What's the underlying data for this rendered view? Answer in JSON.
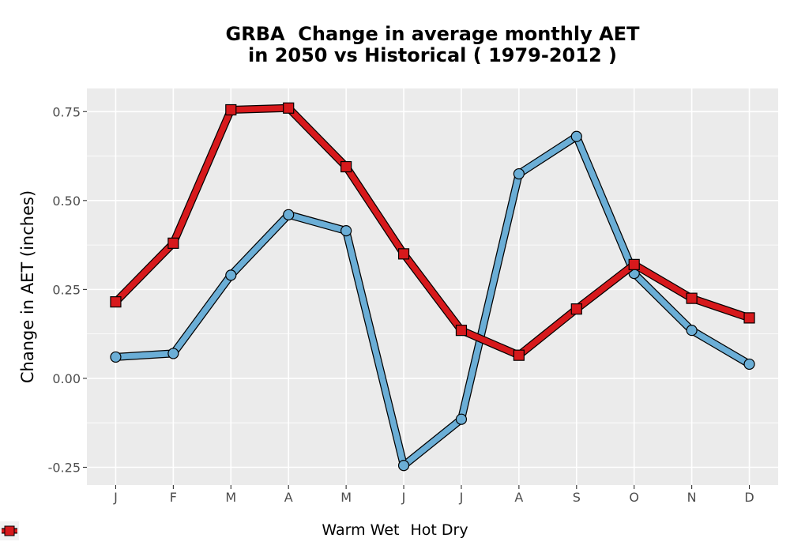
{
  "chart_data": {
    "type": "line",
    "title_lines": [
      "GRBA  Change in average monthly AET",
      "in 2050 vs Historical ( 1979-2012 )"
    ],
    "xlabel": "",
    "ylabel": "Change in AET (inches)",
    "categories": [
      "J",
      "F",
      "M",
      "A",
      "M",
      "J",
      "J",
      "A",
      "S",
      "O",
      "N",
      "D"
    ],
    "y_ticks": [
      -0.25,
      0.0,
      0.25,
      0.5,
      0.75
    ],
    "y_tick_labels": [
      "-0.25",
      "0.00",
      "0.25",
      "0.50",
      "0.75"
    ],
    "ylim": [
      -0.3,
      0.815
    ],
    "grid": true,
    "legend_position": "bottom",
    "series": [
      {
        "name": "Warm Wet",
        "marker": "circle",
        "color": "#6baed6",
        "values": [
          0.06,
          0.07,
          0.29,
          0.46,
          0.415,
          -0.245,
          -0.115,
          0.575,
          0.68,
          0.295,
          0.135,
          0.04
        ]
      },
      {
        "name": "Hot Dry",
        "marker": "square",
        "color": "#d7191c",
        "values": [
          0.215,
          0.38,
          0.755,
          0.76,
          0.595,
          0.35,
          0.135,
          0.065,
          0.195,
          0.32,
          0.225,
          0.17
        ]
      }
    ]
  }
}
